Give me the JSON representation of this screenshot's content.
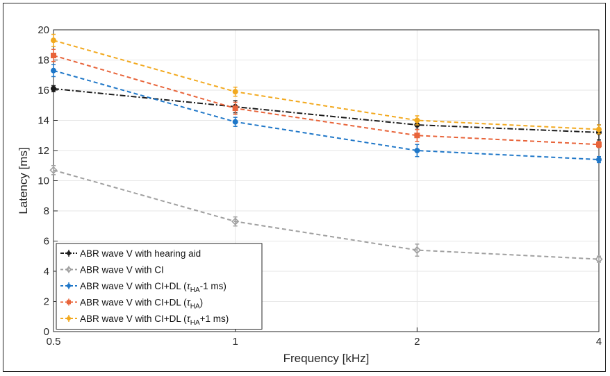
{
  "chart_data": {
    "type": "line",
    "xlabel": "Frequency [kHz]",
    "ylabel": "Latency [ms]",
    "x": [
      0.5,
      1,
      2,
      4
    ],
    "x_tick_labels": [
      "0.5",
      "1",
      "2",
      "4"
    ],
    "x_scale": "log2",
    "ylim": [
      0,
      20
    ],
    "y_ticks": [
      0,
      2,
      4,
      6,
      8,
      10,
      12,
      14,
      16,
      18,
      20
    ],
    "grid": true,
    "legend_position": "bottom-left",
    "series": [
      {
        "name_parts": [
          "ABR wave V with hearing aid"
        ],
        "values": [
          16.1,
          14.9,
          13.7,
          13.2
        ],
        "errors": [
          0.2,
          0.4,
          0.3,
          0.5
        ],
        "color": "#1a1a1a",
        "dash": "8,3,2,3",
        "marker": "dot"
      },
      {
        "name_parts": [
          "ABR wave V with CI"
        ],
        "values": [
          10.7,
          7.3,
          5.4,
          4.8
        ],
        "errors": [
          0.3,
          0.3,
          0.4,
          0.2
        ],
        "color": "#a0a0a0",
        "dash": "6,4",
        "marker": "diamond"
      },
      {
        "name_parts": [
          "ABR wave V with CI+DL (",
          "τ",
          "HA",
          "-1 ms)"
        ],
        "values": [
          17.3,
          13.9,
          12.0,
          11.4
        ],
        "errors": [
          0.4,
          0.3,
          0.4,
          0.2
        ],
        "color": "#1f77c8",
        "dash": "6,4",
        "marker": "dot"
      },
      {
        "name_parts": [
          "ABR wave V with CI+DL (",
          "τ",
          "HA",
          ")"
        ],
        "values": [
          18.3,
          14.8,
          13.0,
          12.4
        ],
        "errors": [
          0.4,
          0.4,
          0.4,
          0.2
        ],
        "color": "#e8643a",
        "dash": "6,4",
        "marker": "square"
      },
      {
        "name_parts": [
          "ABR wave V with CI+DL (",
          "τ",
          "HA",
          "+1 ms)"
        ],
        "values": [
          19.3,
          15.9,
          14.0,
          13.4
        ],
        "errors": [
          0.4,
          0.3,
          0.3,
          0.3
        ],
        "color": "#f2a91f",
        "dash": "6,4",
        "marker": "dot"
      }
    ]
  }
}
